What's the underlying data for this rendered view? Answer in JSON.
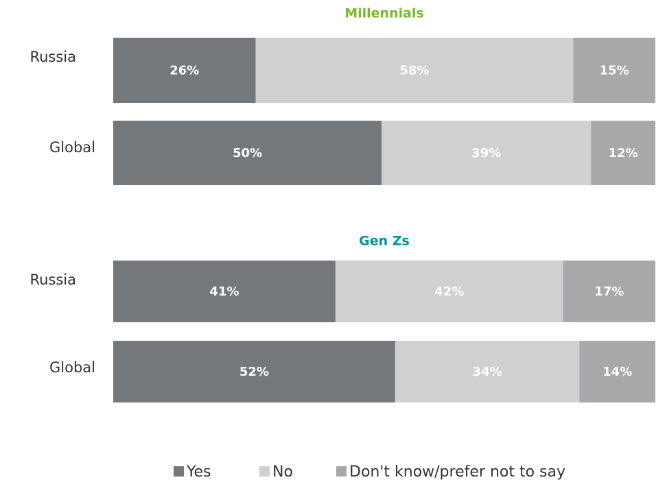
{
  "chart_data": {
    "type": "bar",
    "orientation": "horizontal",
    "stacked": true,
    "panels": [
      {
        "title": "Millennials",
        "title_color": "#7ab929"
      },
      {
        "title": "Gen Zs",
        "title_color": "#00959a"
      }
    ],
    "categories": [
      "Russia",
      "Global",
      "Russia",
      "Global"
    ],
    "series": [
      {
        "name": "Yes",
        "color": "#75787b",
        "values": [
          26,
          50,
          41,
          52
        ],
        "value_labels": [
          "26%",
          "50%",
          "41%",
          "52%"
        ]
      },
      {
        "name": "No",
        "color": "#d0d0ce",
        "values": [
          58,
          39,
          42,
          34
        ],
        "value_labels": [
          "58%",
          "39%",
          "42%",
          "34%"
        ]
      },
      {
        "name": "Don't know/prefer not to say",
        "color": "#a7a8a9",
        "values": [
          15,
          12,
          17,
          14
        ],
        "value_labels": [
          "15%",
          "12%",
          "17%",
          "14%"
        ]
      }
    ]
  }
}
